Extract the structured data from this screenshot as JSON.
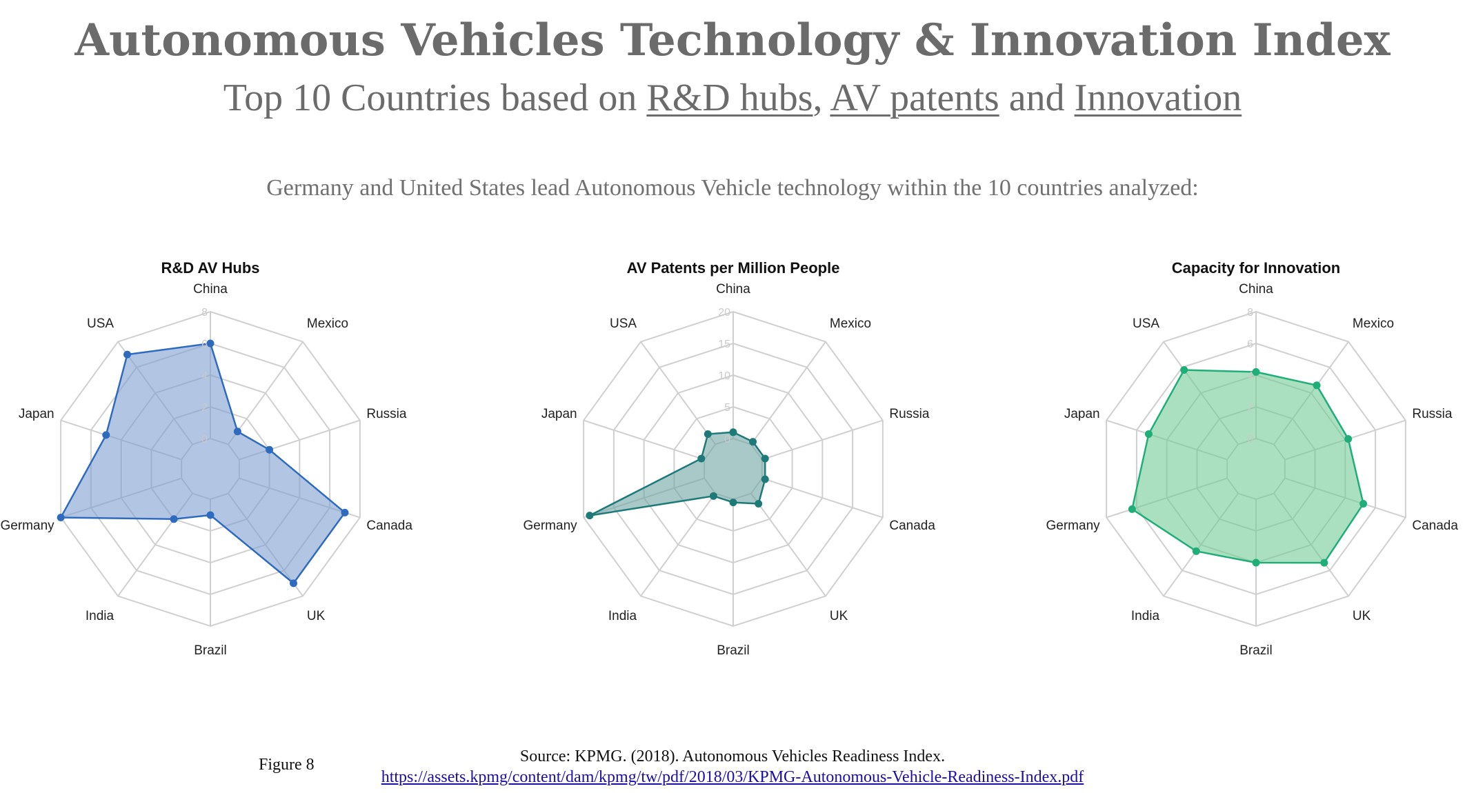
{
  "header": {
    "title": "Autonomous Vehicles Technology & Innovation Index",
    "subtitle_prefix": "Top 10 Countries based on ",
    "subtitle_link1": "R&D hubs",
    "subtitle_sep1": ", ",
    "subtitle_link2": "AV patents",
    "subtitle_sep2": " and ",
    "subtitle_link3": "Innovation",
    "lead_text": "Germany and United States lead Autonomous Vehicle technology within the 10 countries analyzed:"
  },
  "footer": {
    "figure_label": "Figure 8",
    "source_text": "Source: KPMG. (2018). Autonomous Vehicles Readiness Index.",
    "source_link": "https://assets.kpmg/content/dam/kpmg/tw/pdf/2018/03/KPMG-Autonomous-Vehicle-Readiness-Index.pdf"
  },
  "chart_data": [
    {
      "type": "radar",
      "title": "R&D AV Hubs",
      "categories": [
        "China",
        "Mexico",
        "Russia",
        "Canada",
        "UK",
        "Brazil",
        "India",
        "Germany",
        "Japan",
        "USA"
      ],
      "ticks": [
        0,
        2,
        4,
        6,
        8
      ],
      "range": [
        0,
        8
      ],
      "values": [
        6,
        1,
        2,
        7,
        7,
        1,
        2,
        8,
        5,
        7
      ],
      "color": "#2e6bbf",
      "fill": "#7f9fd1"
    },
    {
      "type": "radar",
      "title": "AV Patents per Million People",
      "categories": [
        "China",
        "Mexico",
        "Russia",
        "Canada",
        "UK",
        "Brazil",
        "India",
        "Germany",
        "Japan",
        "USA"
      ],
      "ticks": [
        0,
        5,
        10,
        15,
        20
      ],
      "range": [
        0,
        20
      ],
      "values": [
        1,
        0.5,
        0.5,
        0.5,
        2,
        0.5,
        0.5,
        19,
        0.5,
        2
      ],
      "color": "#1e7a78",
      "fill": "#6fa5a3"
    },
    {
      "type": "radar",
      "title": "Capacity for Innovation",
      "categories": [
        "China",
        "Mexico",
        "Russia",
        "Canada",
        "UK",
        "Brazil",
        "India",
        "Germany",
        "Japan",
        "USA"
      ],
      "ticks": [
        0,
        2,
        4,
        6,
        8
      ],
      "range": [
        0,
        8
      ],
      "values": [
        4.2,
        4.6,
        4.2,
        5.2,
        5.4,
        4,
        4.5,
        6.3,
        5.2,
        5.8
      ],
      "color": "#1fae78",
      "fill": "#72cc94"
    }
  ]
}
